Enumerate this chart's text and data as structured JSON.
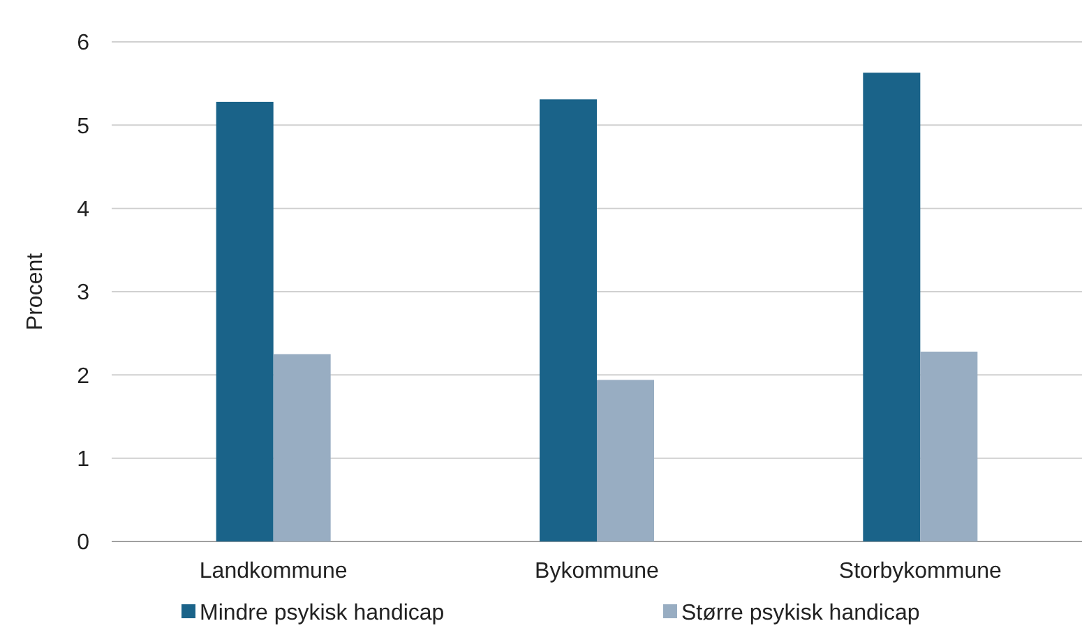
{
  "chart_data": {
    "type": "bar",
    "ylabel": "Procent",
    "categories": [
      "Landkommune",
      "Bykommune",
      "Storbykommune"
    ],
    "series": [
      {
        "name": "Mindre psykisk handicap",
        "color": "#1a6389",
        "values": [
          5.28,
          5.31,
          5.63
        ]
      },
      {
        "name": "Større psykisk handicap",
        "color": "#98adc2",
        "values": [
          2.25,
          1.94,
          2.28
        ]
      }
    ],
    "ylim": [
      0,
      6
    ],
    "yticks": [
      0,
      1,
      2,
      3,
      4,
      5,
      6
    ],
    "grid": "y",
    "legend": "bottom"
  }
}
